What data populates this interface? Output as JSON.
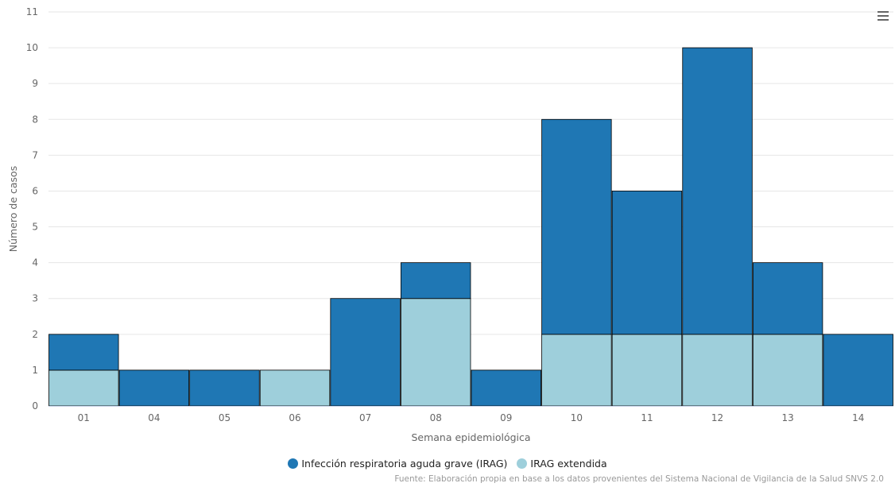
{
  "chart_data": {
    "type": "bar",
    "stacked": true,
    "categories": [
      "01",
      "04",
      "05",
      "06",
      "07",
      "08",
      "09",
      "10",
      "11",
      "12",
      "13",
      "14"
    ],
    "series": [
      {
        "name": "Infección respiratoria aguda grave (IRAG)",
        "color": "#1f77b4",
        "values": [
          1,
          1,
          1,
          0,
          3,
          1,
          1,
          6,
          4,
          8,
          2,
          2
        ]
      },
      {
        "name": "IRAG extendida",
        "color": "#9ecfdb",
        "values": [
          1,
          0,
          0,
          1,
          0,
          3,
          0,
          2,
          2,
          2,
          2,
          0
        ]
      }
    ],
    "xlabel": "Semana epidemiológica",
    "ylabel": "Número de casos",
    "ylim": [
      0,
      11
    ],
    "yticks": [
      0,
      1,
      2,
      3,
      4,
      5,
      6,
      7,
      8,
      9,
      10,
      11
    ],
    "grid": true,
    "legend_position": "bottom-center"
  },
  "credits": "Fuente: Elaboración propia en base a los datos provenientes del Sistema Nacional de Vigilancia de la Salud SNVS 2.0",
  "menu_icon": "hamburger-menu-icon"
}
